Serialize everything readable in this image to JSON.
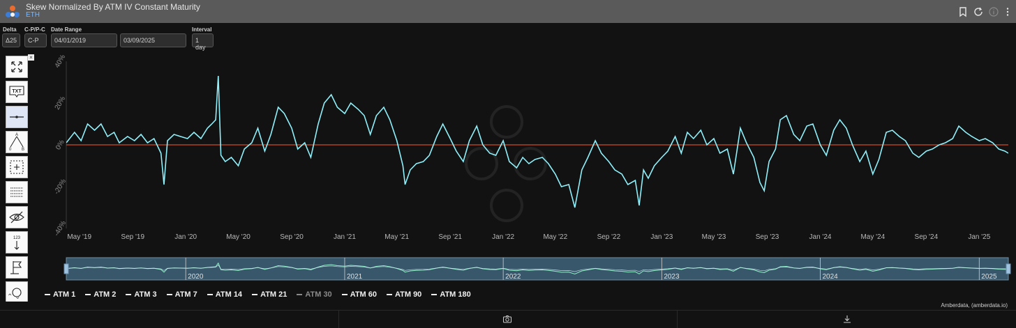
{
  "header": {
    "title": "Skew Normalized By ATM IV Constant Maturity",
    "subtitle": "ETH"
  },
  "controls": {
    "delta": {
      "label": "Delta",
      "value": "Δ25"
    },
    "cp": {
      "label": "C-P/P-C",
      "value": "C-P"
    },
    "date_range": {
      "label": "Date Range",
      "start": "04/01/2019",
      "end": "03/09/2025"
    },
    "interval": {
      "label": "Interval",
      "value": "1 day"
    }
  },
  "toolbar": {
    "close": "×",
    "items": [
      {
        "name": "fullscreen-icon"
      },
      {
        "name": "text-tool-icon",
        "text": "TXT"
      },
      {
        "name": "horizontal-line-icon"
      },
      {
        "name": "fibonacci-icon"
      },
      {
        "name": "selection-box-icon"
      },
      {
        "name": "lines-list-icon"
      },
      {
        "name": "hide-icon"
      },
      {
        "name": "sort-numeric-icon",
        "text": "123"
      },
      {
        "name": "flag-icon"
      },
      {
        "name": "more-tools-icon"
      }
    ],
    "arrows": "⌃ ⌄"
  },
  "colors": {
    "line": "#8ff0fa",
    "zero_line": "#ff5a2a",
    "navigator_fill": "#39576a",
    "navigator_line": "#8ff0c8",
    "background": "#121212"
  },
  "chart_data": {
    "type": "line",
    "ylabel": "",
    "xlabel": "",
    "ylim": [
      -40,
      40
    ],
    "y_ticks": [
      {
        "value": 40,
        "label": "40%"
      },
      {
        "value": 20,
        "label": "20%"
      },
      {
        "value": 0,
        "label": "0%"
      },
      {
        "value": -20,
        "label": "-20%"
      },
      {
        "value": -40,
        "label": "-40%"
      }
    ],
    "x_range": [
      "2019-04-01",
      "2025-03-09"
    ],
    "x_ticks": [
      {
        "date": "2019-05-01",
        "label": "May '19"
      },
      {
        "date": "2019-09-01",
        "label": "Sep '19"
      },
      {
        "date": "2020-01-01",
        "label": "Jan '20"
      },
      {
        "date": "2020-05-01",
        "label": "May '20"
      },
      {
        "date": "2020-09-01",
        "label": "Sep '20"
      },
      {
        "date": "2021-01-01",
        "label": "Jan '21"
      },
      {
        "date": "2021-05-01",
        "label": "May '21"
      },
      {
        "date": "2021-09-01",
        "label": "Sep '21"
      },
      {
        "date": "2022-01-01",
        "label": "Jan '22"
      },
      {
        "date": "2022-05-01",
        "label": "May '22"
      },
      {
        "date": "2022-09-01",
        "label": "Sep '22"
      },
      {
        "date": "2023-01-01",
        "label": "Jan '23"
      },
      {
        "date": "2023-05-01",
        "label": "May '23"
      },
      {
        "date": "2023-09-01",
        "label": "Sep '23"
      },
      {
        "date": "2024-01-01",
        "label": "Jan '24"
      },
      {
        "date": "2024-05-01",
        "label": "May '24"
      },
      {
        "date": "2024-09-01",
        "label": "Sep '24"
      },
      {
        "date": "2025-01-01",
        "label": "Jan '25"
      }
    ],
    "navigator_labels": [
      {
        "date": "2020-01-01",
        "label": "2020"
      },
      {
        "date": "2021-01-01",
        "label": "2021"
      },
      {
        "date": "2022-01-01",
        "label": "2022"
      },
      {
        "date": "2023-01-01",
        "label": "2023"
      },
      {
        "date": "2024-01-01",
        "label": "2024"
      },
      {
        "date": "2025-01-01",
        "label": "2025"
      }
    ],
    "series": [
      {
        "name": "ATM 30",
        "points": [
          [
            "2019-04-01",
            1
          ],
          [
            "2019-04-20",
            6
          ],
          [
            "2019-05-05",
            2
          ],
          [
            "2019-05-20",
            10
          ],
          [
            "2019-06-05",
            7
          ],
          [
            "2019-06-20",
            10
          ],
          [
            "2019-07-05",
            4
          ],
          [
            "2019-07-20",
            6
          ],
          [
            "2019-08-01",
            1
          ],
          [
            "2019-08-20",
            4
          ],
          [
            "2019-09-05",
            2
          ],
          [
            "2019-09-20",
            5
          ],
          [
            "2019-10-05",
            1
          ],
          [
            "2019-10-20",
            3
          ],
          [
            "2019-11-05",
            -4
          ],
          [
            "2019-11-12",
            -19
          ],
          [
            "2019-11-20",
            2
          ],
          [
            "2019-12-05",
            5
          ],
          [
            "2019-12-20",
            4
          ],
          [
            "2020-01-05",
            3
          ],
          [
            "2020-01-20",
            6
          ],
          [
            "2020-02-05",
            3
          ],
          [
            "2020-02-20",
            8
          ],
          [
            "2020-03-01",
            10
          ],
          [
            "2020-03-10",
            12
          ],
          [
            "2020-03-16",
            33
          ],
          [
            "2020-03-22",
            -5
          ],
          [
            "2020-04-01",
            -8
          ],
          [
            "2020-04-15",
            -6
          ],
          [
            "2020-05-01",
            -10
          ],
          [
            "2020-05-15",
            -2
          ],
          [
            "2020-06-01",
            1
          ],
          [
            "2020-06-15",
            8
          ],
          [
            "2020-07-01",
            -3
          ],
          [
            "2020-07-15",
            5
          ],
          [
            "2020-08-01",
            18
          ],
          [
            "2020-08-15",
            15
          ],
          [
            "2020-09-01",
            8
          ],
          [
            "2020-09-15",
            -2
          ],
          [
            "2020-10-01",
            1
          ],
          [
            "2020-10-15",
            -6
          ],
          [
            "2020-11-01",
            10
          ],
          [
            "2020-11-15",
            20
          ],
          [
            "2020-12-01",
            24
          ],
          [
            "2020-12-15",
            18
          ],
          [
            "2021-01-01",
            15
          ],
          [
            "2021-01-15",
            20
          ],
          [
            "2021-02-01",
            17
          ],
          [
            "2021-02-15",
            14
          ],
          [
            "2021-03-01",
            5
          ],
          [
            "2021-03-15",
            14
          ],
          [
            "2021-04-01",
            18
          ],
          [
            "2021-04-15",
            12
          ],
          [
            "2021-05-01",
            2
          ],
          [
            "2021-05-15",
            -10
          ],
          [
            "2021-05-20",
            -19
          ],
          [
            "2021-06-01",
            -12
          ],
          [
            "2021-06-15",
            -9
          ],
          [
            "2021-07-01",
            -8
          ],
          [
            "2021-07-15",
            -5
          ],
          [
            "2021-08-01",
            4
          ],
          [
            "2021-08-15",
            10
          ],
          [
            "2021-09-01",
            3
          ],
          [
            "2021-09-15",
            -3
          ],
          [
            "2021-10-01",
            -8
          ],
          [
            "2021-10-15",
            2
          ],
          [
            "2021-11-01",
            9
          ],
          [
            "2021-11-15",
            0
          ],
          [
            "2021-12-01",
            -4
          ],
          [
            "2021-12-15",
            -5
          ],
          [
            "2022-01-01",
            2
          ],
          [
            "2022-01-15",
            -8
          ],
          [
            "2022-02-01",
            -11
          ],
          [
            "2022-02-15",
            -6
          ],
          [
            "2022-03-01",
            -9
          ],
          [
            "2022-03-15",
            -7
          ],
          [
            "2022-04-01",
            -6
          ],
          [
            "2022-04-15",
            -9
          ],
          [
            "2022-05-01",
            -14
          ],
          [
            "2022-05-15",
            -20
          ],
          [
            "2022-06-01",
            -19
          ],
          [
            "2022-06-15",
            -30
          ],
          [
            "2022-07-01",
            -12
          ],
          [
            "2022-07-15",
            -6
          ],
          [
            "2022-08-01",
            2
          ],
          [
            "2022-08-15",
            -4
          ],
          [
            "2022-09-01",
            -8
          ],
          [
            "2022-09-15",
            -12
          ],
          [
            "2022-10-01",
            -14
          ],
          [
            "2022-10-15",
            -19
          ],
          [
            "2022-11-01",
            -17
          ],
          [
            "2022-11-10",
            -29
          ],
          [
            "2022-11-20",
            -12
          ],
          [
            "2022-12-01",
            -16
          ],
          [
            "2022-12-15",
            -10
          ],
          [
            "2023-01-01",
            -6
          ],
          [
            "2023-01-15",
            -3
          ],
          [
            "2023-02-01",
            4
          ],
          [
            "2023-02-15",
            -4
          ],
          [
            "2023-03-01",
            6
          ],
          [
            "2023-03-15",
            3
          ],
          [
            "2023-04-01",
            7
          ],
          [
            "2023-04-15",
            0
          ],
          [
            "2023-05-01",
            3
          ],
          [
            "2023-05-15",
            -4
          ],
          [
            "2023-06-01",
            -2
          ],
          [
            "2023-06-15",
            -14
          ],
          [
            "2023-07-01",
            8
          ],
          [
            "2023-07-15",
            1
          ],
          [
            "2023-08-01",
            -6
          ],
          [
            "2023-08-15",
            -18
          ],
          [
            "2023-08-25",
            -22
          ],
          [
            "2023-09-05",
            -8
          ],
          [
            "2023-09-20",
            -2
          ],
          [
            "2023-10-01",
            12
          ],
          [
            "2023-10-15",
            14
          ],
          [
            "2023-11-01",
            5
          ],
          [
            "2023-11-15",
            2
          ],
          [
            "2023-12-01",
            9
          ],
          [
            "2023-12-15",
            10
          ],
          [
            "2024-01-01",
            0
          ],
          [
            "2024-01-15",
            -5
          ],
          [
            "2024-02-01",
            7
          ],
          [
            "2024-02-15",
            12
          ],
          [
            "2024-03-01",
            8
          ],
          [
            "2024-03-15",
            0
          ],
          [
            "2024-04-01",
            -8
          ],
          [
            "2024-04-15",
            -3
          ],
          [
            "2024-05-01",
            -14
          ],
          [
            "2024-05-15",
            -7
          ],
          [
            "2024-06-01",
            6
          ],
          [
            "2024-06-15",
            7
          ],
          [
            "2024-07-01",
            4
          ],
          [
            "2024-07-15",
            2
          ],
          [
            "2024-08-01",
            -4
          ],
          [
            "2024-08-15",
            -6
          ],
          [
            "2024-09-01",
            -3
          ],
          [
            "2024-09-15",
            -2
          ],
          [
            "2024-10-01",
            0
          ],
          [
            "2024-10-15",
            1
          ],
          [
            "2024-11-01",
            3
          ],
          [
            "2024-11-15",
            9
          ],
          [
            "2024-12-01",
            6
          ],
          [
            "2024-12-15",
            4
          ],
          [
            "2025-01-01",
            2
          ],
          [
            "2025-01-15",
            3
          ],
          [
            "2025-02-01",
            1
          ],
          [
            "2025-02-15",
            -2
          ],
          [
            "2025-03-01",
            -3
          ],
          [
            "2025-03-09",
            -4
          ]
        ]
      }
    ],
    "legend": [
      {
        "name": "ATM 1",
        "dim": false
      },
      {
        "name": "ATM 2",
        "dim": false
      },
      {
        "name": "ATM 3",
        "dim": false
      },
      {
        "name": "ATM 7",
        "dim": false
      },
      {
        "name": "ATM 14",
        "dim": false
      },
      {
        "name": "ATM 21",
        "dim": false
      },
      {
        "name": "ATM 30",
        "dim": true
      },
      {
        "name": "ATM 60",
        "dim": false
      },
      {
        "name": "ATM 90",
        "dim": false
      },
      {
        "name": "ATM 180",
        "dim": false
      }
    ],
    "grid": false,
    "zero_line": true,
    "legend_placement": "bottom-left"
  },
  "credit": "Amberdata, (amberdata.io)"
}
